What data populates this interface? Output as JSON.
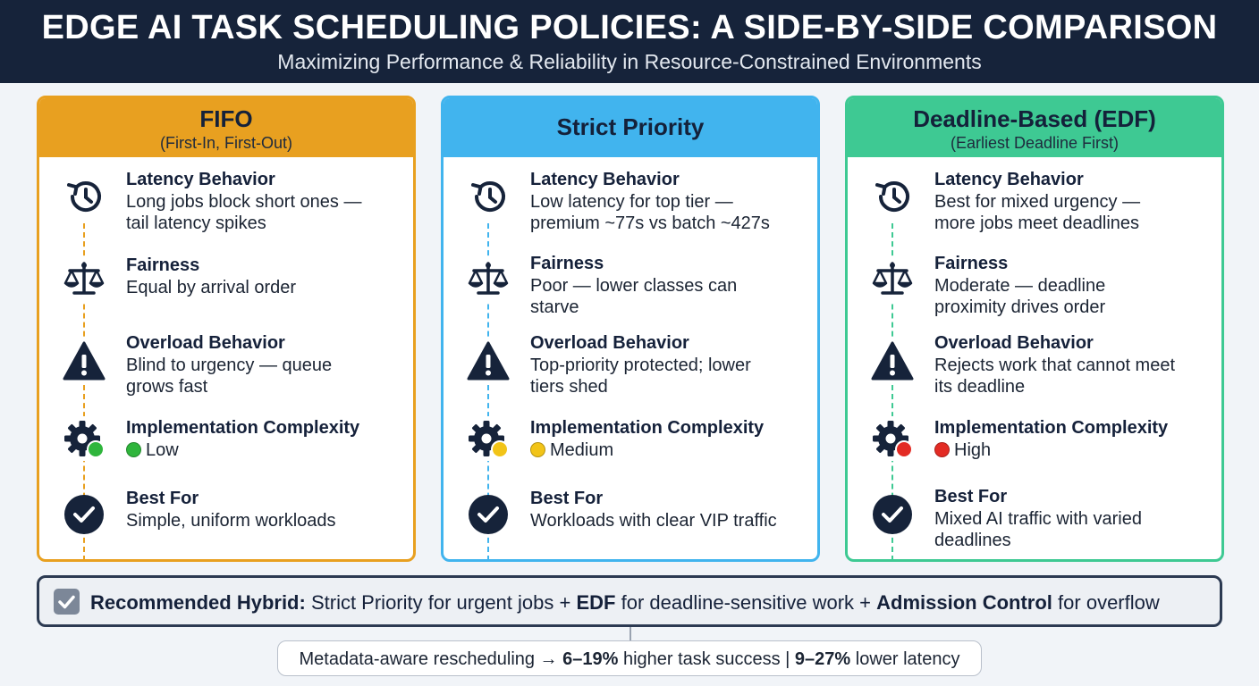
{
  "header": {
    "title": "EDGE AI TASK SCHEDULING POLICIES: A SIDE-BY-SIDE COMPARISON",
    "subtitle": "Maximizing Performance & Reliability in Resource-Constrained Environments"
  },
  "colors": {
    "fifo": "#e8a020",
    "priority": "#41b4ee",
    "edf": "#3ec993",
    "navy": "#16233a",
    "complexity_low": "#2fb53c",
    "complexity_medium": "#f2c418",
    "complexity_high": "#e32b24"
  },
  "cards": [
    {
      "name": "FIFO",
      "subtitle": "(First-In, First-Out)",
      "latency": {
        "label": "Latency Behavior",
        "line1": "Long jobs block short ones —",
        "line2": "tail latency spikes"
      },
      "fairness": {
        "label": "Fairness",
        "line1": "Equal by arrival order",
        "line2": ""
      },
      "overload": {
        "label": "Overload Behavior",
        "line1": "Blind to urgency — queue",
        "line2": "grows fast"
      },
      "complexity": {
        "label": "Implementation Complexity",
        "value": "Low",
        "icon": "green-dot-icon"
      },
      "best": {
        "label": "Best For",
        "line1": "Simple, uniform workloads",
        "line2": ""
      }
    },
    {
      "name": "Strict Priority",
      "subtitle": "",
      "latency": {
        "label": "Latency Behavior",
        "line1": "Low latency for top tier —",
        "line2": "premium ~77s vs batch ~427s"
      },
      "fairness": {
        "label": "Fairness",
        "line1": "Poor — lower classes can",
        "line2": "starve"
      },
      "overload": {
        "label": "Overload Behavior",
        "line1": "Top-priority protected; lower",
        "line2": "tiers shed"
      },
      "complexity": {
        "label": "Implementation Complexity",
        "value": "Medium",
        "icon": "yellow-dot-icon"
      },
      "best": {
        "label": "Best For",
        "line1": "Workloads with clear VIP traffic",
        "line2": ""
      }
    },
    {
      "name": "Deadline-Based (EDF)",
      "subtitle": "(Earliest Deadline First)",
      "latency": {
        "label": "Latency Behavior",
        "line1": "Best for mixed urgency —",
        "line2": "more jobs meet deadlines"
      },
      "fairness": {
        "label": "Fairness",
        "line1": "Moderate — deadline",
        "line2": "proximity drives order"
      },
      "overload": {
        "label": "Overload Behavior",
        "line1": "Rejects work that cannot meet",
        "line2": "its deadline"
      },
      "complexity": {
        "label": "Implementation Complexity",
        "value": "High",
        "icon": "red-dot-icon"
      },
      "best": {
        "label": "Best For",
        "line1": "Mixed AI traffic with varied",
        "line2": "deadlines"
      }
    }
  ],
  "hybrid": {
    "label": "Recommended Hybrid:",
    "part1": "Strict Priority for urgent jobs +",
    "edf": "EDF",
    "part2": "for deadline-sensitive work +",
    "admission": "Admission Control",
    "part3": "for overflow"
  },
  "metric": {
    "prefix": "Metadata-aware rescheduling →",
    "success_value": "6–19%",
    "success_text": "higher task success |",
    "latency_value": "9–27%",
    "latency_text": "lower latency"
  }
}
